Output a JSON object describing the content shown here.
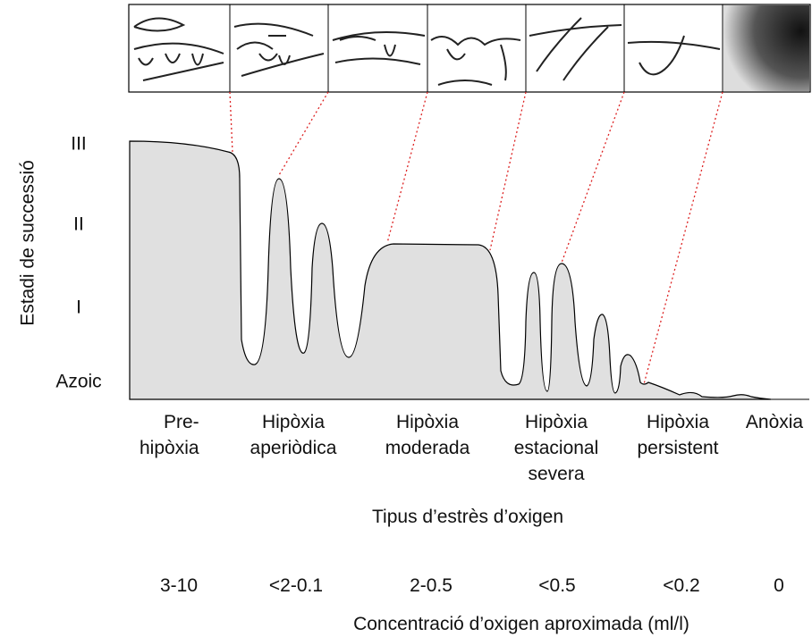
{
  "y_axis": {
    "title": "Estadi de successió",
    "levels": [
      "III",
      "II",
      "I",
      "Azoic"
    ]
  },
  "stress_types": [
    [
      "Pre-",
      "hipòxia"
    ],
    [
      "Hipòxia",
      "aperiòdica"
    ],
    [
      "Hipòxia",
      "moderada"
    ],
    [
      "Hipòxia",
      "estacional",
      "severa"
    ],
    [
      "Hipòxia",
      "persistent"
    ],
    [
      "Anòxia"
    ]
  ],
  "stress_title": "Tipus d’estrès d’oxigen",
  "concentrations": [
    "3-10",
    "<2-0.1",
    "2-0.5",
    "<0.5",
    "<0.2",
    "0"
  ],
  "concentration_title": "Concentració d’oxigen aproximada (ml/l)"
}
